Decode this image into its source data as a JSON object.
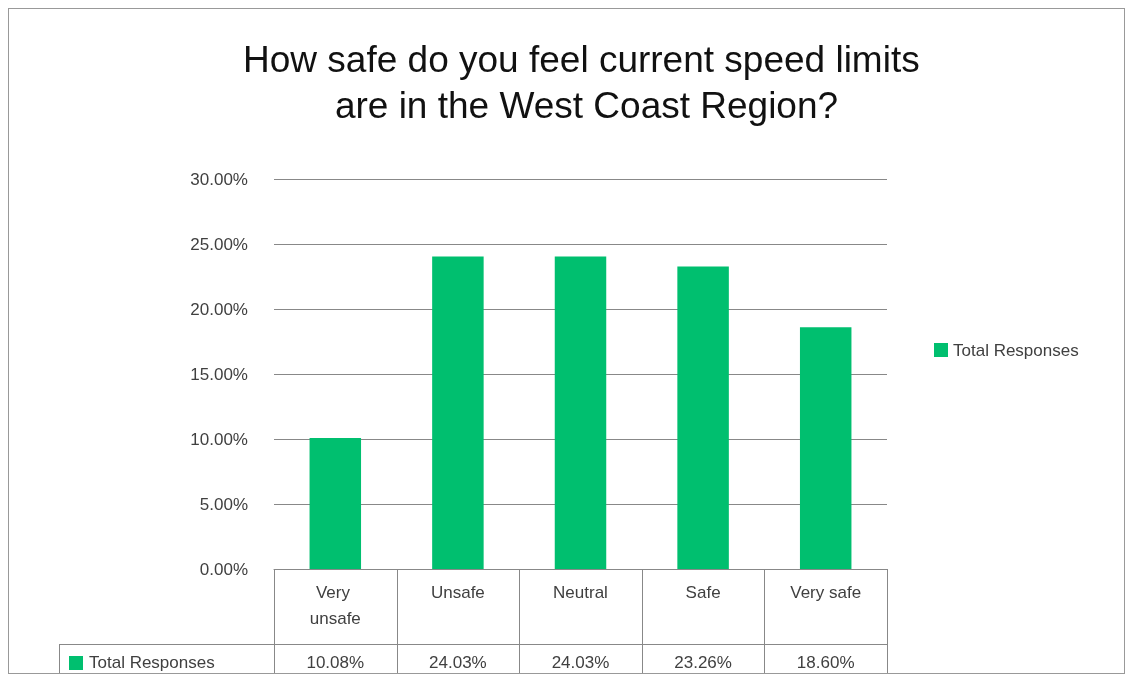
{
  "chart_data": {
    "type": "bar",
    "title": "How safe do you feel current speed limits are in the West Coast Region?",
    "categories": [
      "Very unsafe",
      "Unsafe",
      "Neutral",
      "Safe",
      "Very safe"
    ],
    "series": [
      {
        "name": "Total Responses",
        "color": "#00bf6f",
        "values": [
          10.08,
          24.03,
          24.03,
          23.26,
          18.6
        ],
        "value_labels": [
          "10.08%",
          "24.03%",
          "24.03%",
          "23.26%",
          "18.60%"
        ]
      }
    ],
    "ylim": [
      0,
      30
    ],
    "yticks": [
      {
        "value": 0,
        "label": "0.00%"
      },
      {
        "value": 5,
        "label": "5.00%"
      },
      {
        "value": 10,
        "label": "10.00%"
      },
      {
        "value": 15,
        "label": "15.00%"
      },
      {
        "value": 20,
        "label": "20.00%"
      },
      {
        "value": 25,
        "label": "25.00%"
      },
      {
        "value": 30,
        "label": "30.00%"
      }
    ],
    "grid": "y",
    "legend": "right"
  }
}
